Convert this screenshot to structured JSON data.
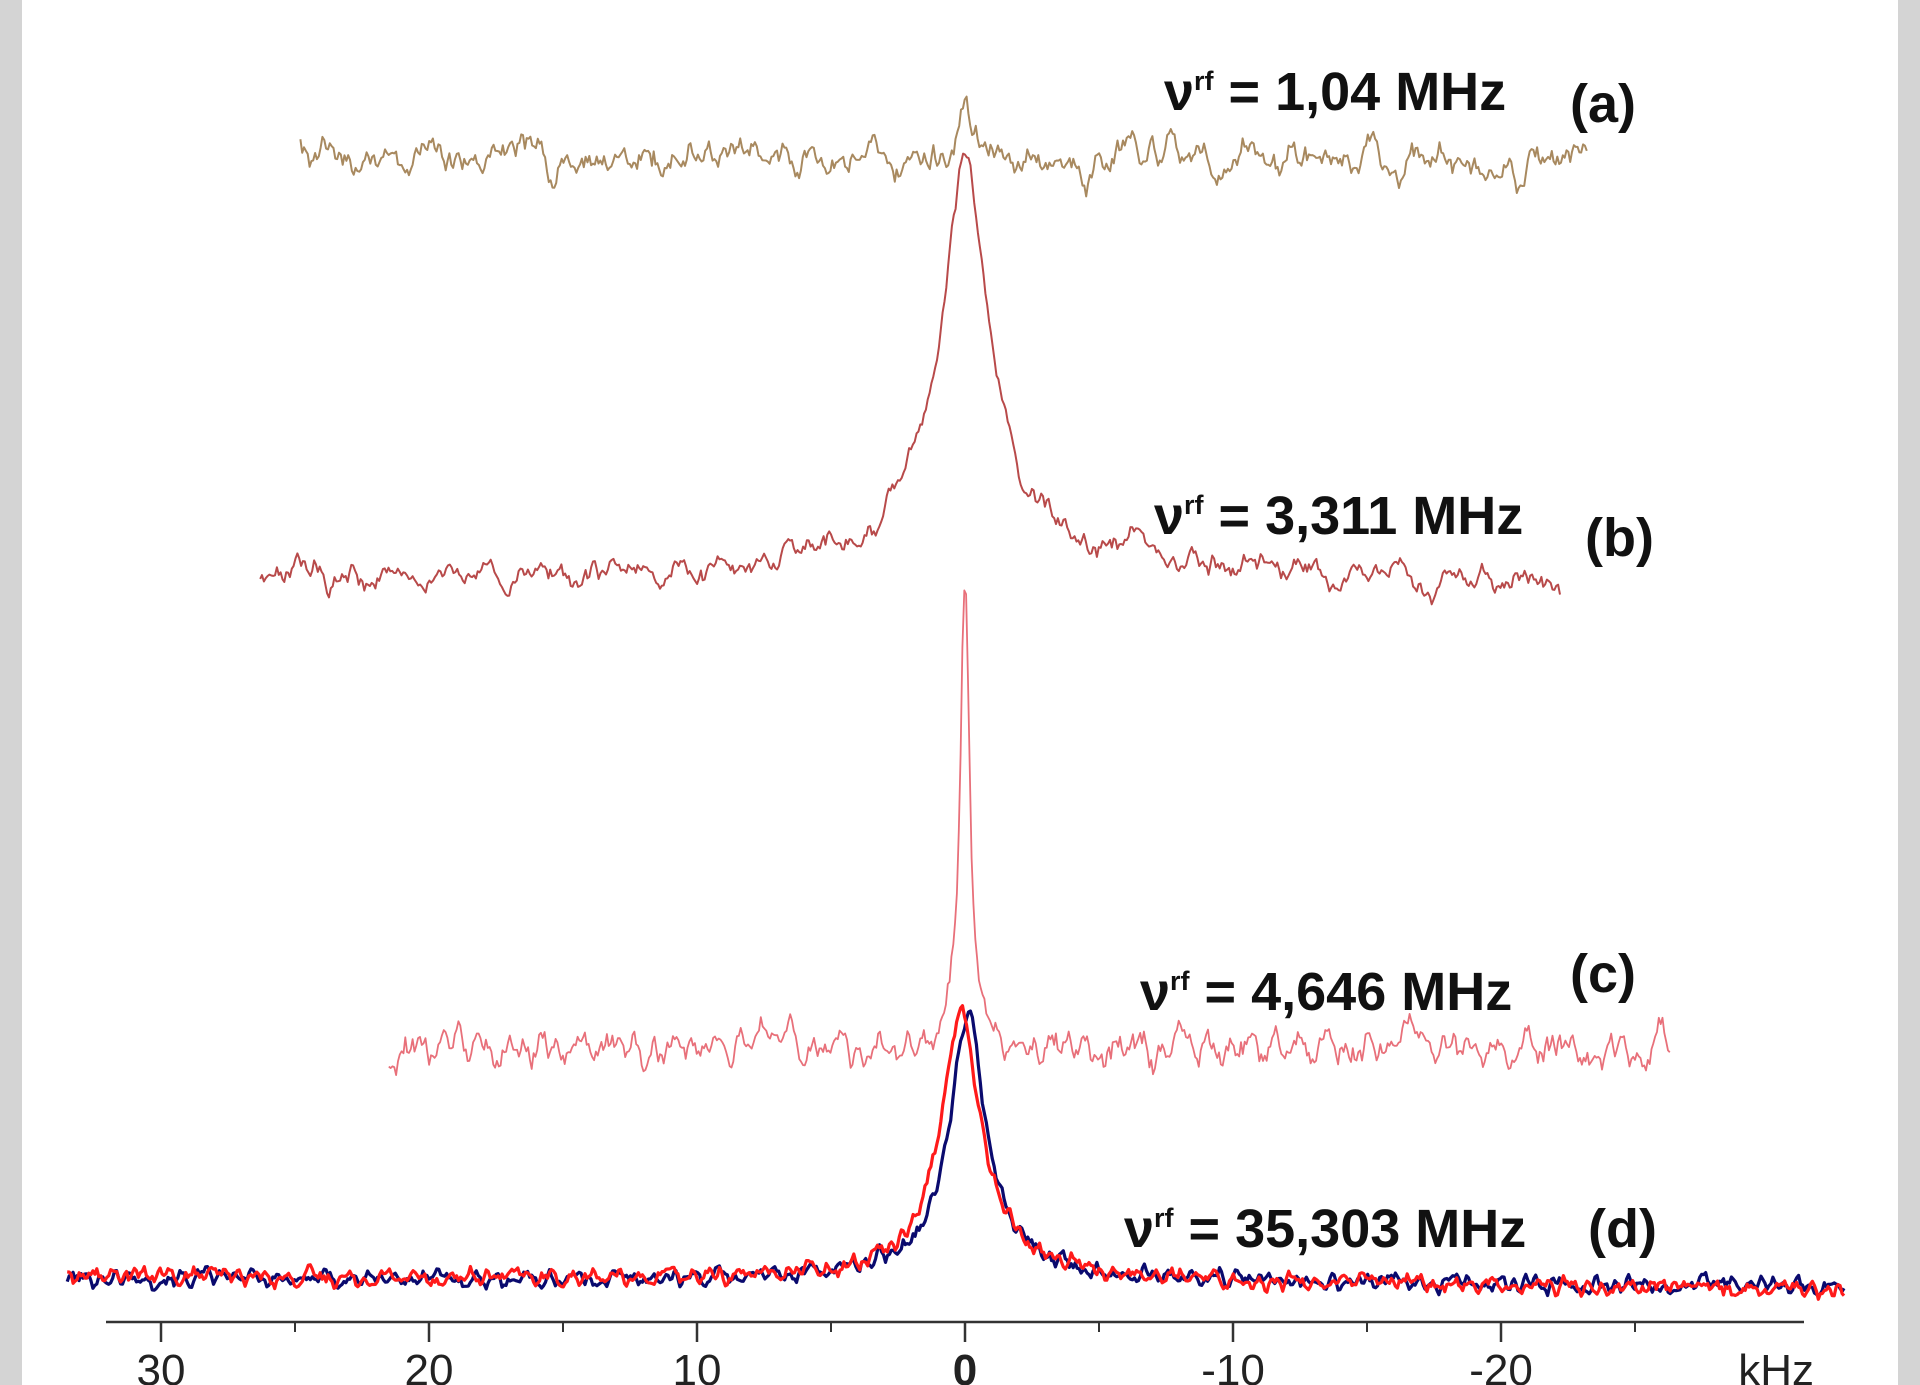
{
  "chart_data": {
    "type": "line",
    "x_unit": "kHz",
    "x_axis": {
      "ticks": [
        30,
        20,
        10,
        0,
        -10,
        -20
      ],
      "tick_labels": [
        "30",
        "20",
        "10",
        "0",
        "-10",
        "-20"
      ],
      "unit_label": "kHz",
      "reversed": true,
      "range": [
        32,
        -31.5
      ]
    },
    "spectra": [
      {
        "panel": "(a)",
        "label_prefix": "ν",
        "label_sup": "rf",
        "label_value": " = 1,04 MHz",
        "color": "#a8895f",
        "x_range": [
          24.8,
          -23.2
        ],
        "peak_width_khz": 0.25,
        "peak_height": 0.55,
        "noise": 0.11
      },
      {
        "panel": "(b)",
        "label_prefix": "ν",
        "label_sup": "rf",
        "label_value": " = 3,311 MHz",
        "color": "#b84a4a",
        "x_range": [
          26.3,
          -22.2
        ],
        "peak_width_khz": 1.0,
        "peak_height": 1.0,
        "noise": 0.045
      },
      {
        "panel": "(c)",
        "label_prefix": "ν",
        "label_sup": "rf",
        "label_value": " = 4,646 MHz",
        "color": "#e8707a",
        "x_range": [
          21.5,
          -26.3
        ],
        "peak_width_khz": 0.22,
        "peak_height": 1.0,
        "noise": 0.07
      },
      {
        "panel": "(d)",
        "label_prefix": "ν",
        "label_sup": "rf",
        "label_value": " = 35,303 MHz",
        "x_range": [
          33.5,
          -32.8
        ],
        "series": [
          {
            "color": "#0a0a6e",
            "peak_width_khz": 0.75,
            "peak_offset_khz": -0.1
          },
          {
            "color": "#ff1a1a",
            "peak_width_khz": 0.85,
            "peak_offset_khz": 0.15
          }
        ]
      }
    ]
  }
}
